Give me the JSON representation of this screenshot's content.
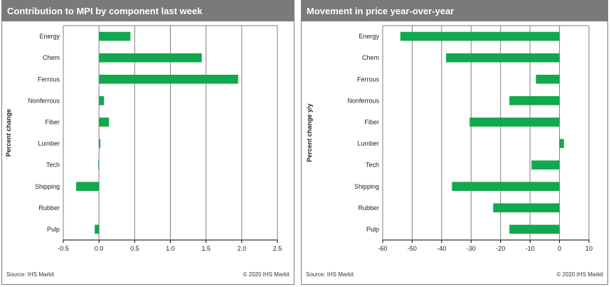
{
  "colors": {
    "bar": "#11a84e",
    "grid": "#7f7f7f",
    "header_bg": "#7a7a7a",
    "header_text": "#ffffff"
  },
  "chart_data": [
    {
      "type": "bar",
      "orientation": "horizontal",
      "title": "Contribution  to MPI by component last week",
      "ylabel": "Percent change",
      "categories": [
        "Energy",
        "Chem",
        "Ferrous",
        "Nonferrous",
        "Fiber",
        "Lumber",
        "Tech",
        "Shipping",
        "Rubber",
        "Pulp"
      ],
      "values": [
        0.44,
        1.44,
        1.95,
        0.07,
        0.14,
        0.02,
        -0.01,
        -0.32,
        0.0,
        -0.06
      ],
      "xlim": [
        -0.5,
        2.5
      ],
      "xticks": [
        "-0.5",
        "0.0",
        "0.5",
        "1.0",
        "1.5",
        "2.0",
        "2.5"
      ],
      "grid": "vertical",
      "source": "Source:  IHS Markit",
      "copyright": "© 2020  IHS Markit"
    },
    {
      "type": "bar",
      "orientation": "horizontal",
      "title": "Movement in price year-over-year",
      "ylabel": "Percent change y/y",
      "categories": [
        "Energy",
        "Chem",
        "Ferrous",
        "Nonferrous",
        "Fiber",
        "Lumber",
        "Tech",
        "Shipping",
        "Rubber",
        "Pulp"
      ],
      "values": [
        -54,
        -38.5,
        -8,
        -17,
        -30.5,
        1.5,
        -9.5,
        -36.5,
        -22.5,
        -17
      ],
      "xlim": [
        -60,
        10
      ],
      "xticks": [
        "-60",
        "-50",
        "-40",
        "-30",
        "-20",
        "-10",
        "0",
        "10"
      ],
      "grid": "vertical",
      "source": "Source:  IHS Markit",
      "copyright": "© 2020  IHS Markit"
    }
  ]
}
